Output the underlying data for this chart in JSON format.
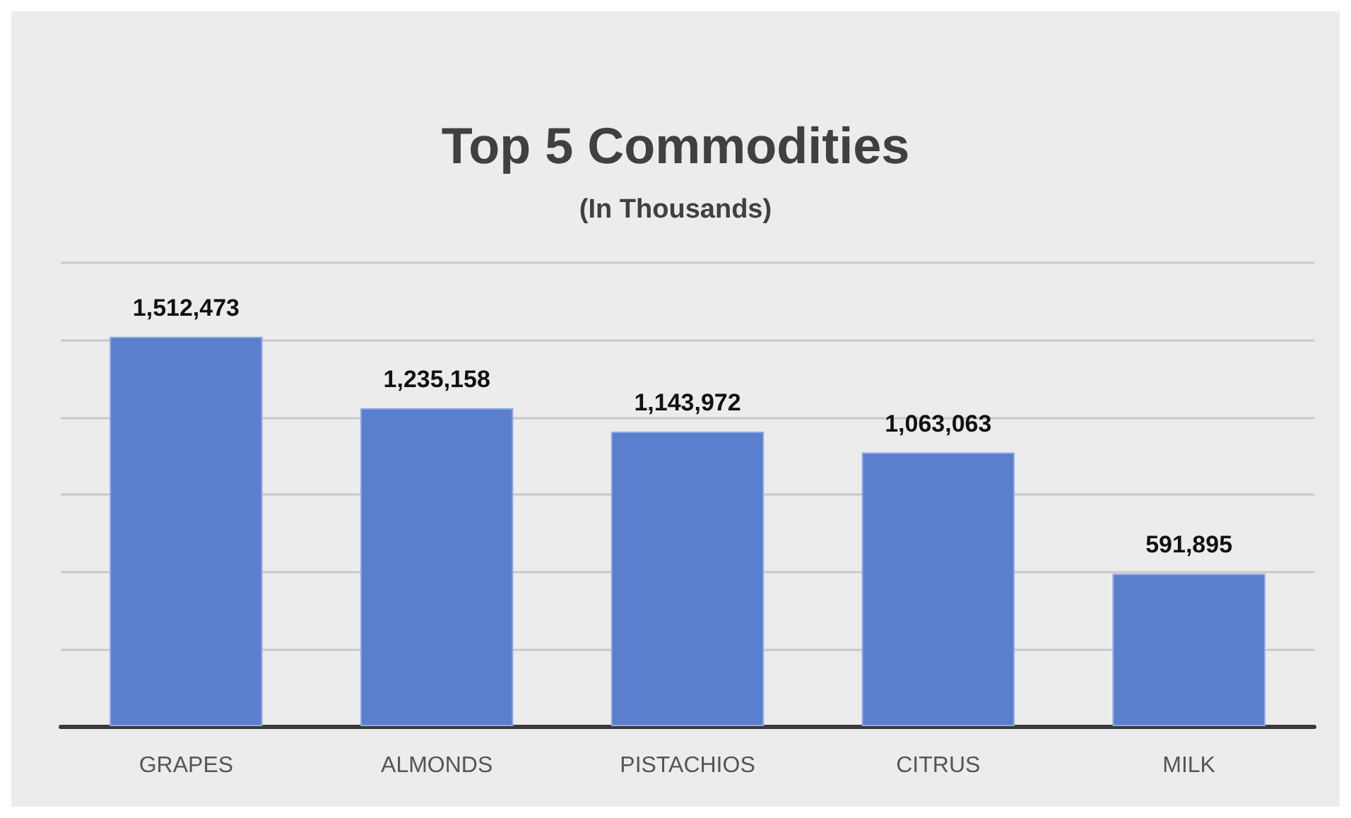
{
  "chart_data": {
    "type": "bar",
    "title": "Top 5 Commodities",
    "subtitle": "(In Thousands)",
    "categories": [
      "GRAPES",
      "ALMONDS",
      "PISTACHIOS",
      "CITRUS",
      "MILK"
    ],
    "values": [
      1512473,
      1235158,
      1143972,
      1063063,
      591895
    ],
    "value_labels": [
      "1,512,473",
      "1,235,158",
      "1,143,972",
      "1,063,063",
      "591,895"
    ],
    "color": "#5b7fcf",
    "grid": "y",
    "tick_labels": "x"
  }
}
